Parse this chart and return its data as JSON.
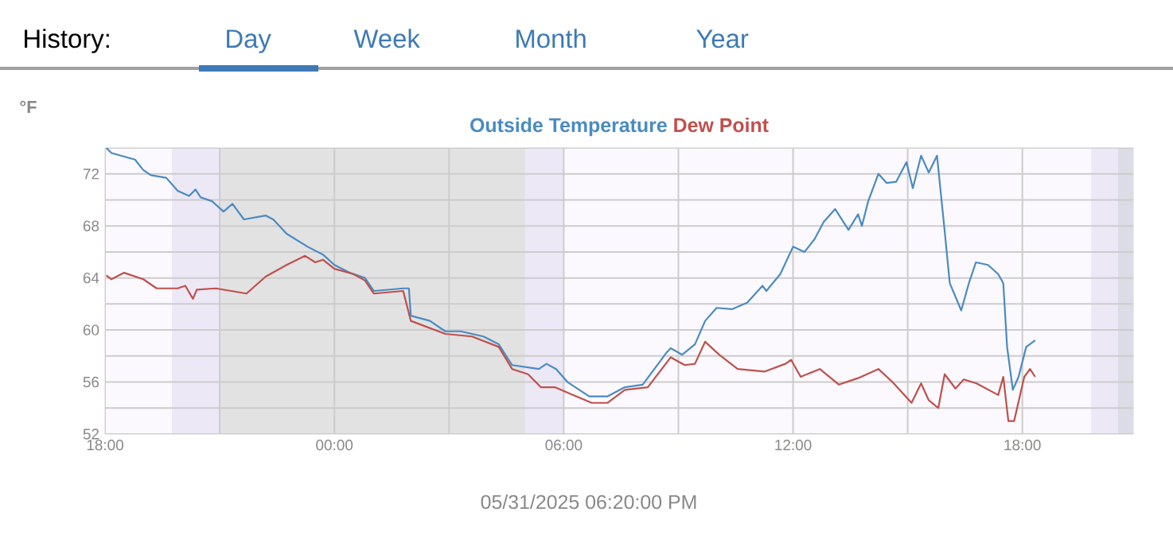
{
  "chart_data": {
    "type": "line",
    "xlabel": "05/31/2025 06:20:00 PM",
    "ylabel": "°F",
    "legend": "top",
    "grid": true,
    "annotations": [
      "History:",
      "Day",
      "Week",
      "Month",
      "Year"
    ],
    "xlim": [
      "2025-05-30T18:00",
      "2025-05-31T20:54"
    ],
    "ylim": [
      52,
      74
    ],
    "xticks": [
      {
        "value": "2025-05-30T18:00",
        "label": "18:00"
      },
      {
        "value": "2025-05-30T21:00",
        "label": null
      },
      {
        "value": "2025-05-31T00:00",
        "label": "00:00"
      },
      {
        "value": "2025-05-31T03:00",
        "label": null
      },
      {
        "value": "2025-05-31T06:00",
        "label": "06:00"
      },
      {
        "value": "2025-05-31T09:00",
        "label": null
      },
      {
        "value": "2025-05-31T12:00",
        "label": "12:00"
      },
      {
        "value": "2025-05-31T15:00",
        "label": null
      },
      {
        "value": "2025-05-31T18:00",
        "label": "18:00"
      }
    ],
    "yticks": [
      52,
      {
        "value": 54,
        "label": null
      },
      56,
      {
        "value": 58,
        "label": null
      },
      60,
      {
        "value": 62,
        "label": null
      },
      64,
      {
        "value": 66,
        "label": null
      },
      68,
      {
        "value": 70,
        "label": null
      },
      72,
      {
        "value": 74,
        "label": null
      }
    ],
    "bands": [
      {
        "axis": "x",
        "from": "2025-05-30T19:45",
        "to": "2025-05-30T21:00",
        "color": "#ece8f6"
      },
      {
        "axis": "x",
        "from": "2025-05-30T21:00",
        "to": "2025-05-31T05:00",
        "color": "#e2e2e2"
      },
      {
        "axis": "x",
        "from": "2025-05-31T05:00",
        "to": "2025-05-31T06:00",
        "color": "#ece8f6"
      },
      {
        "axis": "x",
        "from": "2025-05-31T19:48",
        "to": "2025-05-31T20:30",
        "color": "#ece8f6"
      },
      {
        "axis": "x",
        "from": "2025-05-31T20:30",
        "to": "2025-05-31T20:54",
        "color": "#dcdce6"
      }
    ],
    "series": [
      {
        "name": "Outside Temperature",
        "color": "#4a8bc2",
        "x": [
          "2025-05-30T18:02",
          "2025-05-30T18:10",
          "2025-05-30T18:47",
          "2025-05-30T19:00",
          "2025-05-30T19:12",
          "2025-05-30T19:36",
          "2025-05-30T19:54",
          "2025-05-30T20:12",
          "2025-05-30T20:22",
          "2025-05-30T20:30",
          "2025-05-30T20:48",
          "2025-05-30T21:06",
          "2025-05-30T21:20",
          "2025-05-30T21:38",
          "2025-05-30T22:12",
          "2025-05-30T22:24",
          "2025-05-30T22:45",
          "2025-05-30T23:18",
          "2025-05-30T23:42",
          "2025-05-31T00:00",
          "2025-05-31T00:24",
          "2025-05-31T00:48",
          "2025-05-31T01:02",
          "2025-05-31T01:48",
          "2025-05-31T01:57",
          "2025-05-31T02:00",
          "2025-05-31T02:30",
          "2025-05-31T02:54",
          "2025-05-31T03:18",
          "2025-05-31T03:54",
          "2025-05-31T04:18",
          "2025-05-31T04:39",
          "2025-05-31T05:21",
          "2025-05-31T05:33",
          "2025-05-31T05:48",
          "2025-05-31T06:06",
          "2025-05-31T06:40",
          "2025-05-31T07:09",
          "2025-05-31T07:36",
          "2025-05-31T08:04",
          "2025-05-31T08:42",
          "2025-05-31T08:48",
          "2025-05-31T09:06",
          "2025-05-31T09:26",
          "2025-05-31T09:42",
          "2025-05-31T10:00",
          "2025-05-31T10:24",
          "2025-05-31T10:48",
          "2025-05-31T11:12",
          "2025-05-31T11:18",
          "2025-05-31T11:40",
          "2025-05-31T12:00",
          "2025-05-31T12:18",
          "2025-05-31T12:34",
          "2025-05-31T12:48",
          "2025-05-31T13:06",
          "2025-05-31T13:27",
          "2025-05-31T13:42",
          "2025-05-31T13:48",
          "2025-05-31T13:58",
          "2025-05-31T14:14",
          "2025-05-31T14:27",
          "2025-05-31T14:42",
          "2025-05-31T14:58",
          "2025-05-31T15:08",
          "2025-05-31T15:21",
          "2025-05-31T15:33",
          "2025-05-31T15:46",
          "2025-05-31T15:58",
          "2025-05-31T16:06",
          "2025-05-31T16:24",
          "2025-05-31T16:36",
          "2025-05-31T16:47",
          "2025-05-31T17:06",
          "2025-05-31T17:22",
          "2025-05-31T17:30",
          "2025-05-31T17:36",
          "2025-05-31T17:45",
          "2025-05-31T17:54",
          "2025-05-31T18:06",
          "2025-05-31T18:20"
        ],
        "values": [
          74.0,
          73.6,
          73.1,
          72.3,
          71.9,
          71.7,
          70.7,
          70.3,
          70.8,
          70.2,
          69.9,
          69.1,
          69.7,
          68.5,
          68.8,
          68.5,
          67.4,
          66.4,
          65.8,
          65.0,
          64.4,
          64.0,
          63.0,
          63.2,
          63.2,
          61.1,
          60.7,
          59.9,
          59.9,
          59.5,
          58.9,
          57.3,
          57.0,
          57.4,
          57.0,
          56.0,
          54.9,
          54.9,
          55.6,
          55.8,
          58.3,
          58.6,
          58.1,
          58.9,
          60.7,
          61.7,
          61.6,
          62.1,
          63.4,
          63.0,
          64.3,
          66.4,
          66.0,
          67.0,
          68.3,
          69.3,
          67.7,
          68.9,
          68.0,
          69.9,
          72.0,
          71.3,
          71.4,
          72.9,
          70.9,
          73.4,
          72.1,
          73.4,
          67.6,
          63.6,
          61.5,
          63.6,
          65.2,
          65.0,
          64.3,
          63.6,
          58.7,
          55.4,
          56.4,
          58.7,
          59.2
        ]
      },
      {
        "name": "Dew Point",
        "color": "#c0504d",
        "x": [
          "2025-05-30T18:02",
          "2025-05-30T18:10",
          "2025-05-30T18:30",
          "2025-05-30T19:00",
          "2025-05-30T19:21",
          "2025-05-30T19:54",
          "2025-05-30T20:06",
          "2025-05-30T20:18",
          "2025-05-30T20:24",
          "2025-05-30T20:54",
          "2025-05-30T21:42",
          "2025-05-30T22:12",
          "2025-05-30T22:45",
          "2025-05-30T23:14",
          "2025-05-30T23:30",
          "2025-05-30T23:42",
          "2025-05-31T00:00",
          "2025-05-31T00:30",
          "2025-05-31T00:48",
          "2025-05-31T01:02",
          "2025-05-31T01:48",
          "2025-05-31T02:00",
          "2025-05-31T02:54",
          "2025-05-31T03:36",
          "2025-05-31T04:18",
          "2025-05-31T04:39",
          "2025-05-31T05:04",
          "2025-05-31T05:24",
          "2025-05-31T05:46",
          "2025-05-31T06:15",
          "2025-05-31T06:44",
          "2025-05-31T07:09",
          "2025-05-31T07:36",
          "2025-05-31T08:12",
          "2025-05-31T08:48",
          "2025-05-31T09:10",
          "2025-05-31T09:26",
          "2025-05-31T09:42",
          "2025-05-31T10:04",
          "2025-05-31T10:33",
          "2025-05-31T11:15",
          "2025-05-31T11:48",
          "2025-05-31T11:57",
          "2025-05-31T12:12",
          "2025-05-31T12:42",
          "2025-05-31T13:12",
          "2025-05-31T13:42",
          "2025-05-31T14:14",
          "2025-05-31T14:36",
          "2025-05-31T15:06",
          "2025-05-31T15:21",
          "2025-05-31T15:33",
          "2025-05-31T15:48",
          "2025-05-31T15:58",
          "2025-05-31T16:15",
          "2025-05-31T16:28",
          "2025-05-31T16:48",
          "2025-05-31T17:22",
          "2025-05-31T17:30",
          "2025-05-31T17:38",
          "2025-05-31T17:47",
          "2025-05-31T18:03",
          "2025-05-31T18:12",
          "2025-05-31T18:20"
        ],
        "values": [
          64.2,
          63.9,
          64.4,
          63.9,
          63.2,
          63.2,
          63.4,
          62.4,
          63.1,
          63.2,
          62.8,
          64.1,
          65.0,
          65.7,
          65.2,
          65.4,
          64.7,
          64.3,
          63.8,
          62.8,
          63.0,
          60.7,
          59.7,
          59.5,
          58.7,
          57.0,
          56.6,
          55.6,
          55.6,
          55.0,
          54.4,
          54.4,
          55.4,
          55.6,
          57.9,
          57.3,
          57.4,
          59.1,
          58.1,
          57.0,
          56.8,
          57.4,
          57.7,
          56.4,
          57.0,
          55.8,
          56.3,
          57.0,
          56.0,
          54.4,
          55.9,
          54.6,
          54.0,
          56.6,
          55.5,
          56.2,
          55.9,
          55.0,
          56.4,
          53.0,
          53.0,
          56.4,
          57.0,
          56.4
        ]
      }
    ]
  }
}
